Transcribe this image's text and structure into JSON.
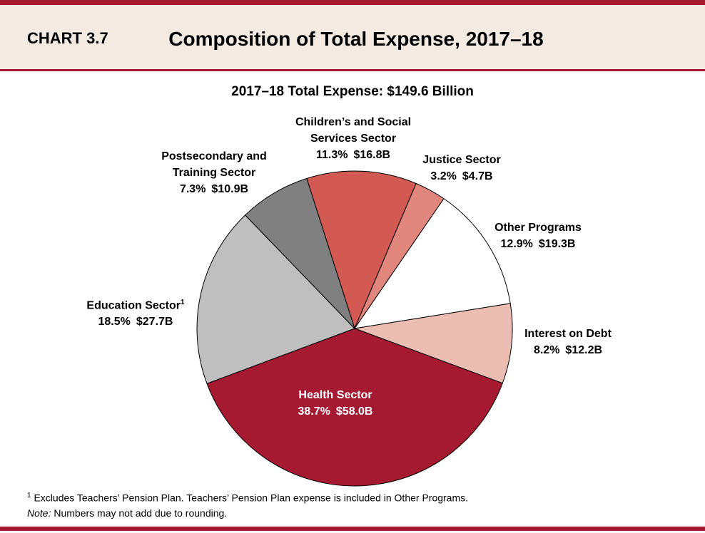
{
  "chart_label": "CHART 3.7",
  "chart_data": {
    "type": "pie",
    "title": "Composition of Total Expense, 2017–18",
    "subtitle": "2017–18 Total Expense: $149.6 Billion",
    "categories": [
      "Children’s and Social\nServices Sector",
      "Justice Sector",
      "Other Programs",
      "Interest on Debt",
      "Health Sector",
      "Education Sector",
      "Postsecondary and\nTraining Sector"
    ],
    "category_notes": [
      null,
      null,
      null,
      null,
      null,
      "1",
      null
    ],
    "values": [
      11.3,
      3.2,
      12.9,
      8.2,
      38.7,
      18.5,
      7.3
    ],
    "value_labels": [
      "11.3%",
      "3.2%",
      "12.9%",
      "8.2%",
      "38.7%",
      "18.5%",
      "7.3%"
    ],
    "amounts": [
      16.8,
      4.7,
      19.3,
      12.2,
      58.0,
      27.7,
      10.9
    ],
    "amount_labels": [
      "$16.8B",
      "$4.7B",
      "$19.3B",
      "$12.2B",
      "$58.0B",
      "$27.7B",
      "$10.9B"
    ],
    "colors": [
      "#d35a52",
      "#e0867c",
      "#ffffff",
      "#ecbdb3",
      "#a51931",
      "#bfbfbf",
      "#808080"
    ]
  },
  "footnote": {
    "marker": "1",
    "text": "Excludes Teachers’ Pension Plan. Teachers’ Pension Plan expense is included in Other Programs."
  },
  "note": {
    "label": "Note:",
    "text": "Numbers may not add due to rounding."
  }
}
